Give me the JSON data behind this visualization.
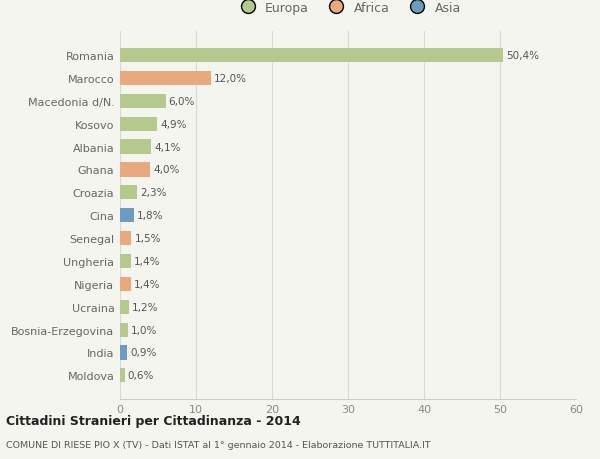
{
  "countries": [
    "Romania",
    "Marocco",
    "Macedonia d/N.",
    "Kosovo",
    "Albania",
    "Ghana",
    "Croazia",
    "Cina",
    "Senegal",
    "Ungheria",
    "Nigeria",
    "Ucraina",
    "Bosnia-Erzegovina",
    "India",
    "Moldova"
  ],
  "values": [
    50.4,
    12.0,
    6.0,
    4.9,
    4.1,
    4.0,
    2.3,
    1.8,
    1.5,
    1.4,
    1.4,
    1.2,
    1.0,
    0.9,
    0.6
  ],
  "labels": [
    "50,4%",
    "12,0%",
    "6,0%",
    "4,9%",
    "4,1%",
    "4,0%",
    "2,3%",
    "1,8%",
    "1,5%",
    "1,4%",
    "1,4%",
    "1,2%",
    "1,0%",
    "0,9%",
    "0,6%"
  ],
  "continents": [
    "Europa",
    "Africa",
    "Europa",
    "Europa",
    "Europa",
    "Africa",
    "Europa",
    "Asia",
    "Africa",
    "Europa",
    "Africa",
    "Europa",
    "Europa",
    "Asia",
    "Europa"
  ],
  "colors": {
    "Europa": "#b5c98e",
    "Africa": "#e8a97e",
    "Asia": "#6b9dc2"
  },
  "bg_color": "#f5f5f0",
  "title1": "Cittadini Stranieri per Cittadinanza - 2014",
  "title2": "COMUNE DI RIESE PIO X (TV) - Dati ISTAT al 1° gennaio 2014 - Elaborazione TUTTITALIA.IT",
  "xlim": [
    0,
    60
  ],
  "xticks": [
    0,
    10,
    20,
    30,
    40,
    50,
    60
  ]
}
